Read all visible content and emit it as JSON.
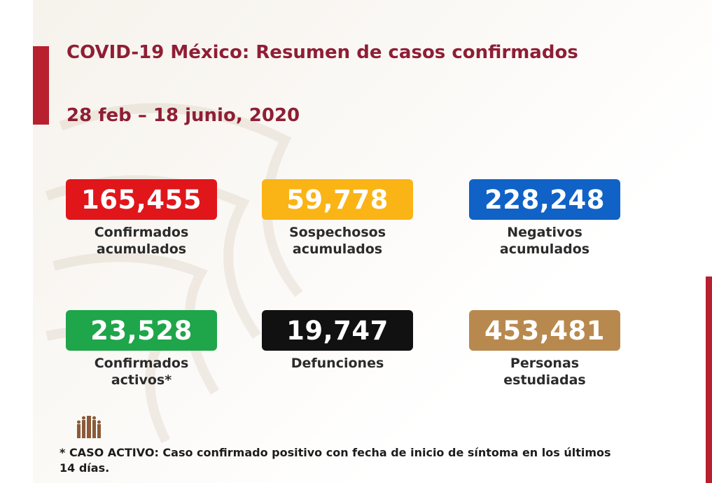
{
  "header": {
    "title": "COVID-19 México: Resumen de casos confirmados",
    "date": "28 feb – 18 junio, 2020"
  },
  "stats": [
    {
      "value": "165,455",
      "label_line1": "Confirmados",
      "label_line2": "acumulados",
      "color": "#e0161b"
    },
    {
      "value": "59,778",
      "label_line1": "Sospechosos",
      "label_line2": "acumulados",
      "color": "#fbb415"
    },
    {
      "value": "228,248",
      "label_line1": "Negativos",
      "label_line2": "acumulados",
      "color": "#1062c6"
    },
    {
      "value": "23,528",
      "label_line1": "Confirmados",
      "label_line2": "activos*",
      "color": "#1fa54a"
    },
    {
      "value": "19,747",
      "label_line1": "Defunciones",
      "label_line2": "",
      "color": "#111111"
    },
    {
      "value": "453,481",
      "label_line1": "Personas",
      "label_line2": "estudiadas",
      "color": "#b8894e"
    }
  ],
  "footnote": {
    "text": "* CASO ACTIVO: Caso confirmado positivo con fecha de inicio de síntoma en los últimos 14 días."
  },
  "colors": {
    "accent": "#b81f2f",
    "title": "#8f1e35"
  },
  "icons": {
    "logo": "gobierno-logo-icon",
    "watermark": "eagle-watermark-icon"
  }
}
